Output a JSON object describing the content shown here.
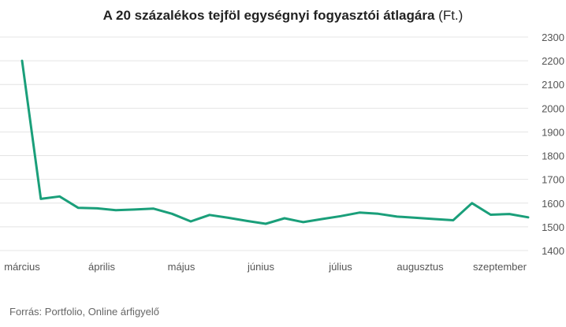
{
  "chart_data": {
    "type": "line",
    "title": "A 20 százalékos tejföl egységnyi fogyasztói átlagára",
    "unit": "(Ft.)",
    "source": "Forrás: Portfolio, Online árfigyelő",
    "x_tick_labels": [
      "március",
      "április",
      "május",
      "június",
      "július",
      "augusztus",
      "szeptember"
    ],
    "y_ticks": [
      1400,
      1500,
      1600,
      1700,
      1800,
      1900,
      2000,
      2100,
      2200,
      2300
    ],
    "ylim": [
      1400,
      2300
    ],
    "grid": true,
    "line_color": "#1a9f7a",
    "series": [
      {
        "values": [
          2200,
          1618,
          1628,
          1580,
          1578,
          1570,
          1573,
          1577,
          1555,
          1523,
          1550,
          1538,
          1525,
          1513,
          1536,
          1520,
          1533,
          1545,
          1560,
          1555,
          1543,
          1538,
          1533,
          1528,
          1600,
          1551,
          1554,
          1540
        ]
      }
    ]
  }
}
